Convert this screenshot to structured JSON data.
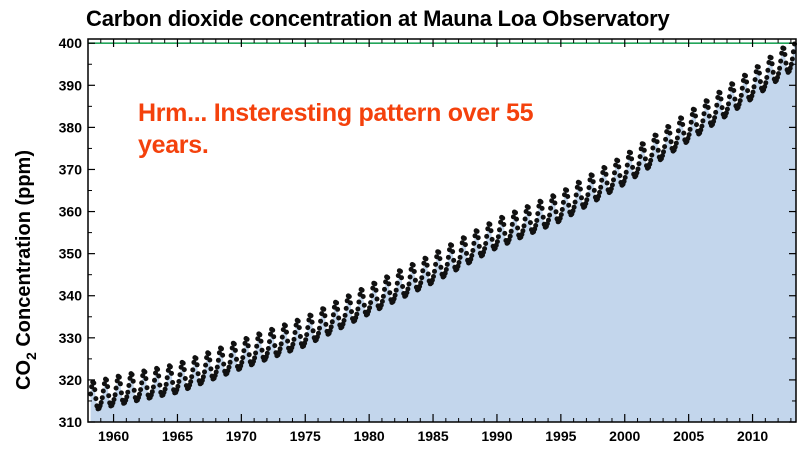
{
  "chart_data": {
    "type": "scatter",
    "title": "Carbon dioxide concentration at Mauna Loa Observatory",
    "ylabel": {
      "main": "CO",
      "subscript": "2",
      "rest": " Concentration (ppm)"
    },
    "xlabel": "",
    "xlim": [
      1958,
      2013.4
    ],
    "ylim": [
      310,
      401
    ],
    "xticks": [
      "1960",
      "1965",
      "1970",
      "1975",
      "1980",
      "1985",
      "1990",
      "1995",
      "2000",
      "2005",
      "2010"
    ],
    "yticks": [
      "310",
      "320",
      "330",
      "340",
      "350",
      "360",
      "370",
      "380",
      "390",
      "400"
    ],
    "reference_line": {
      "y": 400,
      "color": "#22a55a"
    },
    "annotation": "Hrm... Insteresting pattern over 55 years.",
    "annual_mean_ppm": {
      "1958": 315.5,
      "1960": 316.9,
      "1965": 320.0,
      "1970": 325.7,
      "1975": 331.1,
      "1980": 338.7,
      "1985": 346.1,
      "1990": 354.4,
      "1995": 360.8,
      "2000": 369.6,
      "2005": 379.8,
      "2010": 389.9,
      "2013": 396.5
    },
    "seasonal_amplitude_ppm": 3.3,
    "grid": false,
    "colors": {
      "fill": "#c3d6ec",
      "points": "#111111",
      "axes": "#000000"
    }
  }
}
